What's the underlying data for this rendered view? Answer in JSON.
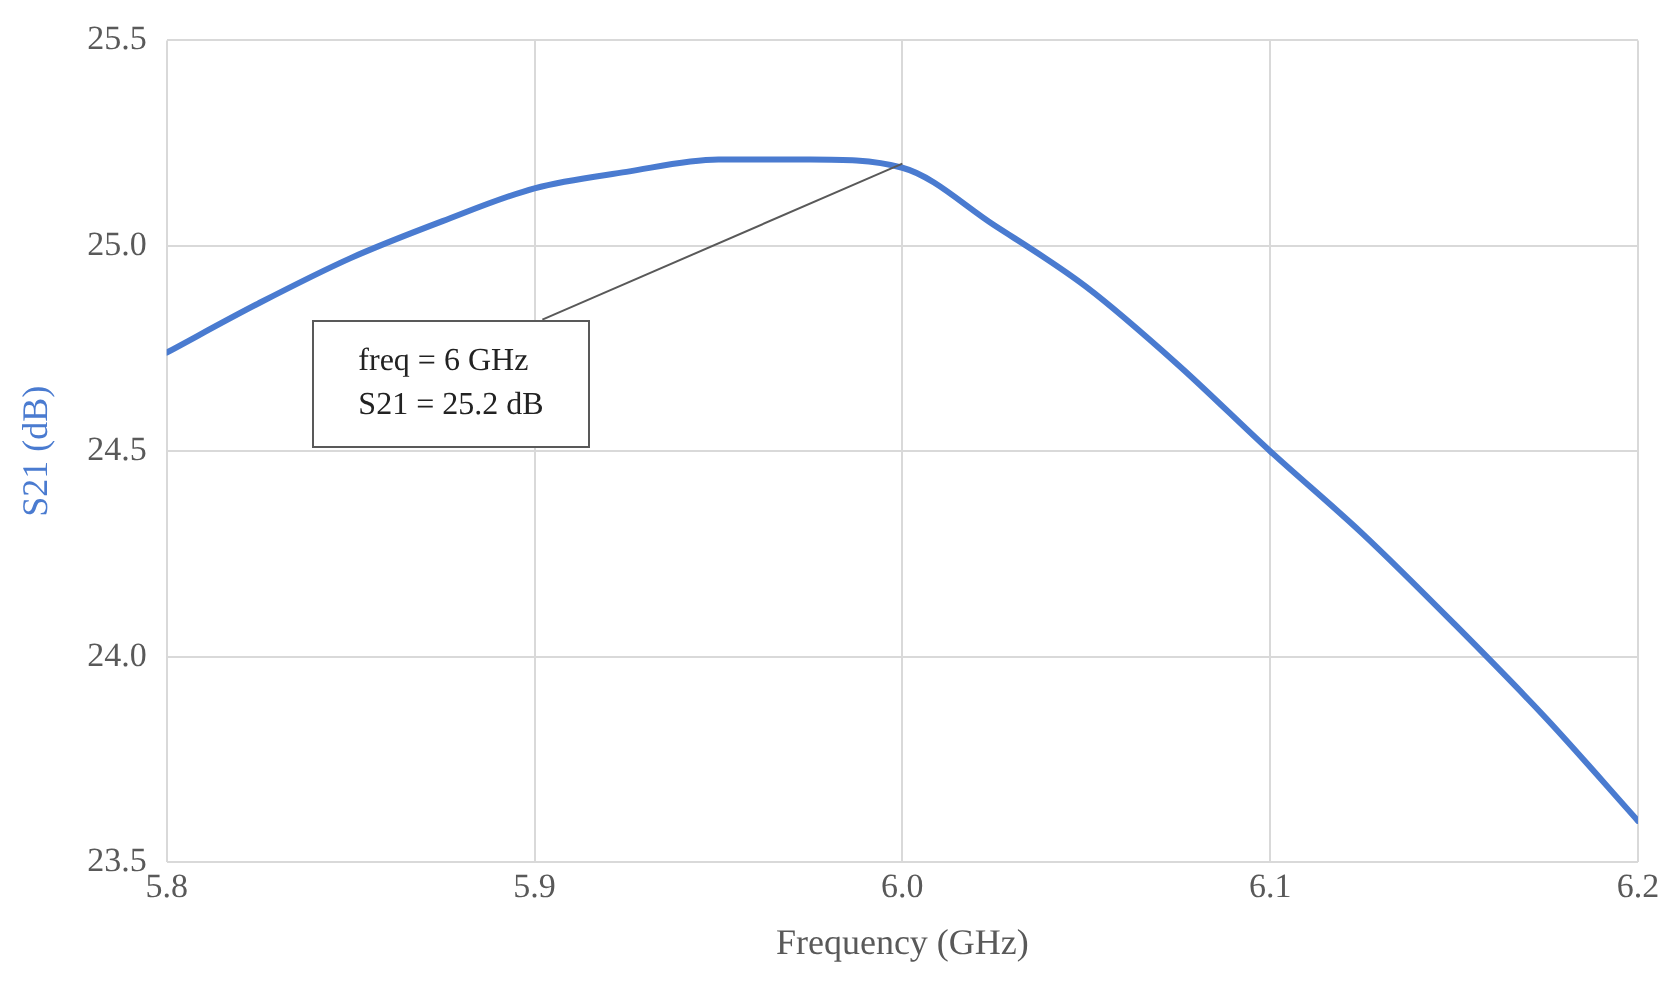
{
  "chart_data": {
    "type": "line",
    "xlabel": "Frequency (GHz)",
    "ylabel": "S21 (dB)",
    "x": [
      5.8,
      5.825,
      5.85,
      5.875,
      5.9,
      5.925,
      5.95,
      5.975,
      6.0,
      6.025,
      6.05,
      6.075,
      6.1,
      6.125,
      6.15,
      6.175,
      6.2
    ],
    "series": [
      {
        "color": "#4a7bd0",
        "values": [
          24.74,
          24.86,
          24.97,
          25.06,
          25.14,
          25.18,
          25.21,
          25.21,
          25.19,
          25.05,
          24.9,
          24.71,
          24.5,
          24.3,
          24.08,
          23.85,
          23.6
        ]
      }
    ],
    "xlim": [
      5.8,
      6.2
    ],
    "xticks": [
      5.8,
      5.9,
      {
        "value": 6.0,
        "label": "6.0"
      },
      6.1,
      6.2
    ],
    "ylim": [
      23.5,
      25.5
    ],
    "yticks": [
      {
        "value": 23.5,
        "label": "23.5"
      },
      {
        "value": 24.0,
        "label": "24.0"
      },
      {
        "value": 24.5,
        "label": "24.5"
      },
      {
        "value": 25.0,
        "label": "25.0"
      },
      {
        "value": 25.5,
        "label": "25.5"
      }
    ],
    "grid": true,
    "legend": false,
    "marker": "none",
    "line_style": "solid",
    "annotations": [
      {
        "text": "freq = 6 GHz\nS21 = 25.2 dB",
        "x": 6.0,
        "y": 25.2
      }
    ]
  }
}
